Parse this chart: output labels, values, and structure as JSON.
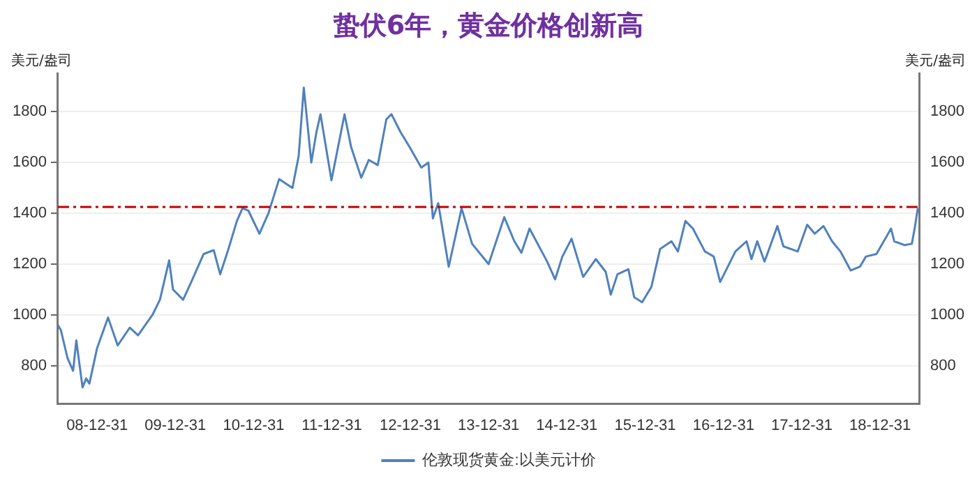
{
  "chart_data": {
    "type": "line",
    "title": "蛰伏6年，黄金价格创新高",
    "ylabel": "美元/盎司",
    "y2label": "美元/盎司",
    "x": [
      "2008-07-01",
      "2008-07-15",
      "2008-08-15",
      "2008-09-10",
      "2008-09-25",
      "2008-10-24",
      "2008-11-10",
      "2008-11-25",
      "2008-12-31",
      "2009-02-20",
      "2009-04-06",
      "2009-06-01",
      "2009-07-10",
      "2009-09-15",
      "2009-10-20",
      "2009-12-02",
      "2009-12-20",
      "2010-02-05",
      "2010-03-10",
      "2010-05-12",
      "2010-06-28",
      "2010-07-28",
      "2010-09-01",
      "2010-10-14",
      "2010-11-09",
      "2010-12-07",
      "2011-01-27",
      "2011-03-10",
      "2011-04-29",
      "2011-06-30",
      "2011-07-29",
      "2011-08-22",
      "2011-09-26",
      "2011-10-20",
      "2011-11-08",
      "2011-12-29",
      "2012-02-28",
      "2012-03-30",
      "2012-05-16",
      "2012-06-20",
      "2012-08-01",
      "2012-09-10",
      "2012-10-04",
      "2012-11-15",
      "2012-12-28",
      "2013-02-20",
      "2013-03-25",
      "2013-04-15",
      "2013-05-10",
      "2013-06-28",
      "2013-08-27",
      "2013-10-15",
      "2013-12-31",
      "2014-03-14",
      "2014-04-30",
      "2014-06-02",
      "2014-07-10",
      "2014-09-30",
      "2014-11-06",
      "2014-12-10",
      "2015-01-22",
      "2015-03-17",
      "2015-05-15",
      "2015-06-30",
      "2015-07-24",
      "2015-08-24",
      "2015-10-14",
      "2015-11-10",
      "2015-12-17",
      "2016-01-29",
      "2016-03-10",
      "2016-05-02",
      "2016-06-01",
      "2016-07-06",
      "2016-08-10",
      "2016-10-05",
      "2016-11-15",
      "2016-12-15",
      "2017-02-24",
      "2017-04-17",
      "2017-05-10",
      "2017-06-06",
      "2017-07-10",
      "2017-09-08",
      "2017-10-06",
      "2017-12-12",
      "2018-01-25",
      "2018-03-01",
      "2018-04-11",
      "2018-05-21",
      "2018-06-29",
      "2018-08-16",
      "2018-09-28",
      "2018-10-26",
      "2018-12-14",
      "2019-02-20",
      "2019-03-07",
      "2019-04-23",
      "2019-05-28",
      "2019-06-10",
      "2019-06-25"
    ],
    "series": [
      {
        "name": "伦敦现货黄金:以美元计价",
        "color": "#4f81bd",
        "values": [
          960,
          940,
          830,
          780,
          900,
          715,
          750,
          730,
          870,
          990,
          880,
          950,
          920,
          1000,
          1060,
          1215,
          1100,
          1060,
          1120,
          1240,
          1255,
          1160,
          1250,
          1370,
          1420,
          1410,
          1320,
          1400,
          1535,
          1500,
          1625,
          1895,
          1600,
          1720,
          1790,
          1530,
          1790,
          1660,
          1540,
          1610,
          1590,
          1770,
          1790,
          1720,
          1660,
          1580,
          1600,
          1380,
          1440,
          1190,
          1420,
          1280,
          1200,
          1385,
          1290,
          1245,
          1340,
          1210,
          1140,
          1230,
          1300,
          1150,
          1220,
          1170,
          1080,
          1160,
          1180,
          1070,
          1050,
          1110,
          1260,
          1290,
          1250,
          1370,
          1340,
          1250,
          1230,
          1130,
          1250,
          1290,
          1220,
          1290,
          1210,
          1350,
          1270,
          1250,
          1355,
          1320,
          1350,
          1290,
          1250,
          1175,
          1190,
          1230,
          1240,
          1340,
          1290,
          1275,
          1280,
          1340,
          1420
        ]
      }
    ],
    "xlim": [
      "2008-07-01",
      "2019-07-01"
    ],
    "xticks": [
      {
        "value": "2008-12-31",
        "label": "08-12-31"
      },
      {
        "value": "2009-12-31",
        "label": "09-12-31"
      },
      {
        "value": "2010-12-31",
        "label": "10-12-31"
      },
      {
        "value": "2011-12-31",
        "label": "11-12-31"
      },
      {
        "value": "2012-12-31",
        "label": "12-12-31"
      },
      {
        "value": "2013-12-31",
        "label": "13-12-31"
      },
      {
        "value": "2014-12-31",
        "label": "14-12-31"
      },
      {
        "value": "2015-12-31",
        "label": "15-12-31"
      },
      {
        "value": "2016-12-31",
        "label": "16-12-31"
      },
      {
        "value": "2017-12-31",
        "label": "17-12-31"
      },
      {
        "value": "2018-12-31",
        "label": "18-12-31"
      }
    ],
    "ylim": [
      650,
      1950
    ],
    "yticks": [
      800,
      1000,
      1200,
      1400,
      1600,
      1800
    ],
    "y2lim": [
      650,
      1950
    ],
    "y2ticks": [
      800,
      1000,
      1200,
      1400,
      1600,
      1800
    ],
    "ref_lines": [
      {
        "axis": "y",
        "value": 1425,
        "color": "#c00000",
        "line_style": "dashdot"
      }
    ],
    "grid": "y",
    "legend": "bottom",
    "marker": "none",
    "line_style": "solid"
  }
}
